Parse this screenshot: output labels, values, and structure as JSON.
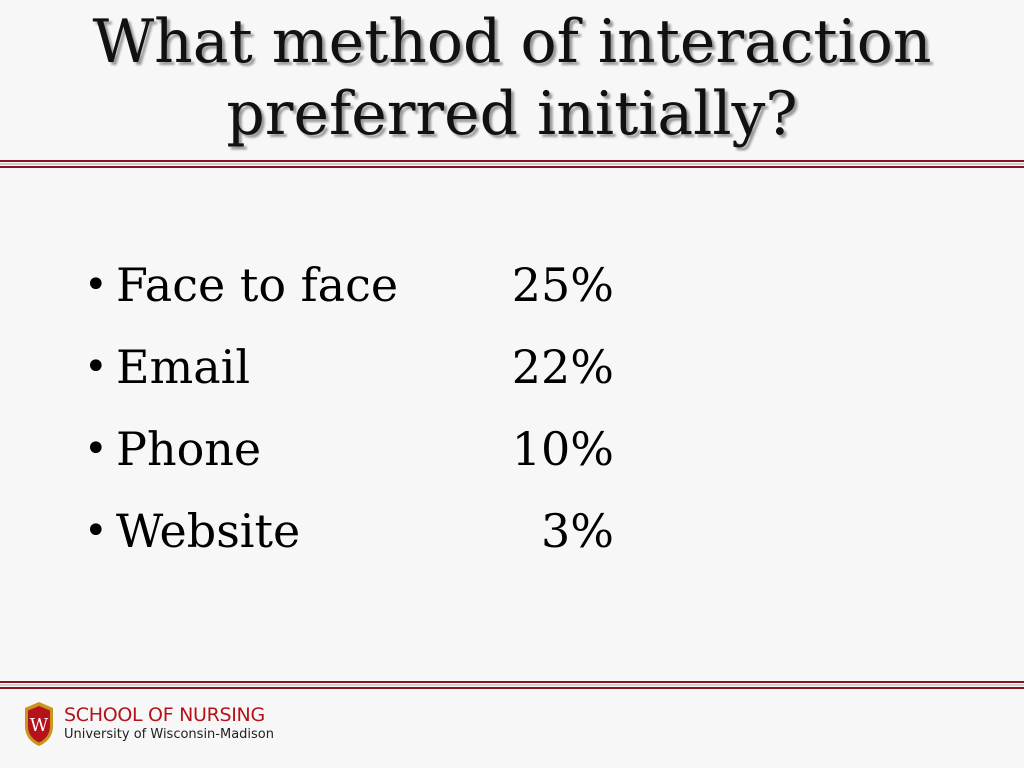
{
  "slide": {
    "title_lines": [
      "What method of interaction",
      "preferred initially?"
    ]
  },
  "bullets": [
    {
      "label": "Face to face",
      "value": "25%"
    },
    {
      "label": "Email",
      "value": "22%"
    },
    {
      "label": "Phone",
      "value": "10%"
    },
    {
      "label": "Website",
      "value": "3%"
    }
  ],
  "footer": {
    "org_name": "SCHOOL OF NURSING",
    "org_sub": "University of Wisconsin-Madison",
    "logo_letter": "W"
  },
  "colors": {
    "accent": "#8b1020",
    "brand_red": "#b5121b",
    "background": "#f7f7f7"
  }
}
